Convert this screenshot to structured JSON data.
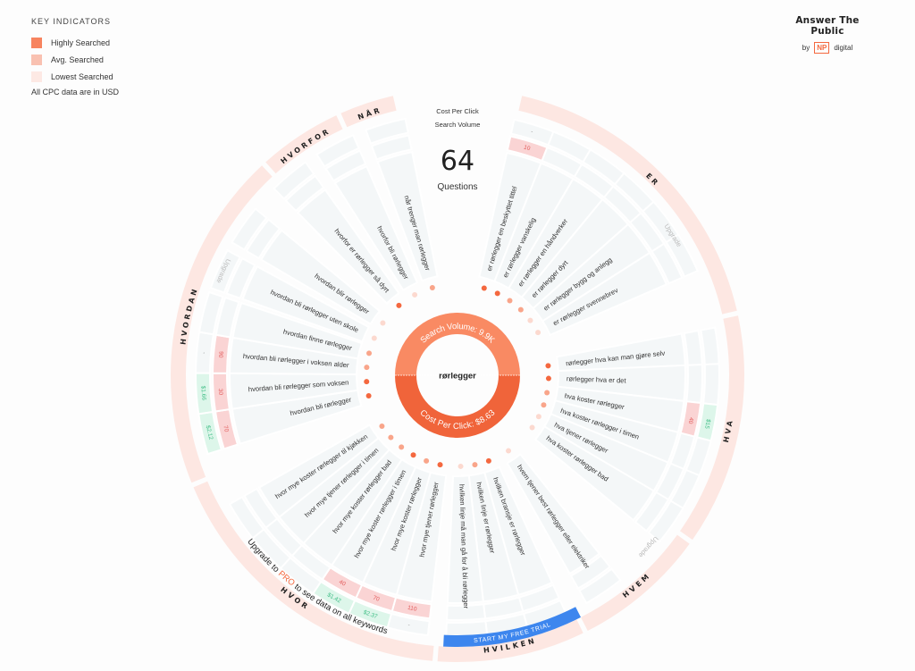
{
  "legend": {
    "title": "KEY INDICATORS",
    "items": [
      {
        "label": "Highly Searched",
        "color": "#f7845f"
      },
      {
        "label": "Avg. Searched",
        "color": "#f9c1b1"
      },
      {
        "label": "Lowest Searched",
        "color": "#fde9e4"
      }
    ],
    "note": "All CPC data are in USD"
  },
  "brand": {
    "name": "Answer The Public",
    "by": "by",
    "np": "NP",
    "digital": "digital"
  },
  "header": {
    "cpc_label": "Cost Per Click",
    "sv_label": "Search Volume",
    "count": "64",
    "count_label": "Questions"
  },
  "center": {
    "keyword": "rørlegger",
    "search_volume": "Search Volume: 9.9K",
    "cpc": "Cost Per Click: $8.63"
  },
  "colors": {
    "high": "#f4683f",
    "avg": "#f9a58a",
    "low": "#fcd9cf",
    "sv_badge": "#fad4d4",
    "sv_text": "#e25b5b",
    "cpc_badge": "#ddf6ea",
    "cpc_text": "#3dbd84",
    "category_ring": "#fde7e2",
    "cell": "#f4f7f8",
    "button": "#3d86ee"
  },
  "upgrade_label": "Upgrade",
  "categories": [
    {
      "name": "ER",
      "upgrade": true,
      "keywords": [
        {
          "text": "er rørlegger en beskyttet tittel",
          "level": "high",
          "sv": "10",
          "cpc": "-"
        },
        {
          "text": "er rørlegger vanskelig",
          "level": "high"
        },
        {
          "text": "er rørlegger en håndverker",
          "level": "avg"
        },
        {
          "text": "er rørlegger dyrt",
          "level": "avg"
        },
        {
          "text": "er rørlegger bygg og anlegg",
          "level": "low"
        },
        {
          "text": "er rørlegger svennebrev",
          "level": "low"
        }
      ]
    },
    {
      "name": "HVA",
      "upgrade": true,
      "keywords": [
        {
          "text": "rørlegger hva kan man gjøre selv",
          "level": "high"
        },
        {
          "text": "rørlegger hva er det",
          "level": "high"
        },
        {
          "text": "hva koster rørlegger",
          "level": "avg",
          "sv": "40",
          "cpc": "$15"
        },
        {
          "text": "hva koster rørlegger i timen",
          "level": "avg"
        },
        {
          "text": "hva tjener rørlegger",
          "level": "low"
        },
        {
          "text": "hva koster rørlegger bad",
          "level": "low"
        }
      ]
    },
    {
      "name": "HVEM",
      "upgrade": false,
      "keywords": [
        {
          "text": "hvem tjener best rørlegger eller elektriker",
          "level": "low"
        }
      ]
    },
    {
      "name": "HVILKEN",
      "upgrade": false,
      "keywords": [
        {
          "text": "hvilken bransje er rørlegger",
          "level": "high"
        },
        {
          "text": "hvilken linje er rørlegger",
          "level": "avg"
        },
        {
          "text": "hvilken linje må man gå for å bli rørlegger",
          "level": "low"
        }
      ]
    },
    {
      "name": "HVOR",
      "upgrade": false,
      "keywords": [
        {
          "text": "hvor mye tjener rørlegger",
          "level": "high",
          "sv": "110",
          "cpc": "-"
        },
        {
          "text": "hvor mye koster rørlegger",
          "level": "avg",
          "sv": "70",
          "cpc": "$2.37"
        },
        {
          "text": "hvor mye koster rørlegger i timen",
          "level": "high",
          "sv": "40",
          "cpc": "$1.42"
        },
        {
          "text": "hvor mye koster rørlegger bad",
          "level": "avg"
        },
        {
          "text": "hvor mye tjener rørlegger i timen",
          "level": "avg"
        },
        {
          "text": "hvor mye koster rørlegger til kjøkken",
          "level": "avg"
        }
      ]
    },
    {
      "name": "HVORDAN",
      "upgrade": true,
      "keywords": [
        {
          "text": "hvordan bli rørlegger",
          "level": "high",
          "sv": "70",
          "cpc": "$2.12"
        },
        {
          "text": "hvordan bli rørlegger som voksen",
          "level": "high",
          "sv": "30",
          "cpc": "$1.66"
        },
        {
          "text": "hvordan bli rørlegger i voksen alder",
          "level": "avg",
          "sv": "90",
          "cpc": "-"
        },
        {
          "text": "hvordan finne rørlegger",
          "level": "avg"
        },
        {
          "text": "hvordan bli rørlegger uten skole",
          "level": "low"
        },
        {
          "text": "hvordan blir rørlegger",
          "level": "low"
        }
      ]
    },
    {
      "name": "HVORFOR",
      "upgrade": false,
      "keywords": [
        {
          "text": "hvorfor er rørlegger så dyrt",
          "level": "high"
        },
        {
          "text": "hvorfor bli rørlegger",
          "level": "low"
        }
      ]
    },
    {
      "name": "NÅR",
      "upgrade": false,
      "keywords": [
        {
          "text": "når trenger man rørlegger",
          "level": "avg"
        }
      ]
    }
  ],
  "promo": {
    "before": "Upgrade to ",
    "pro": "PRO",
    "after": " to see data on all keywords",
    "button": "START MY FREE TRIAL"
  }
}
